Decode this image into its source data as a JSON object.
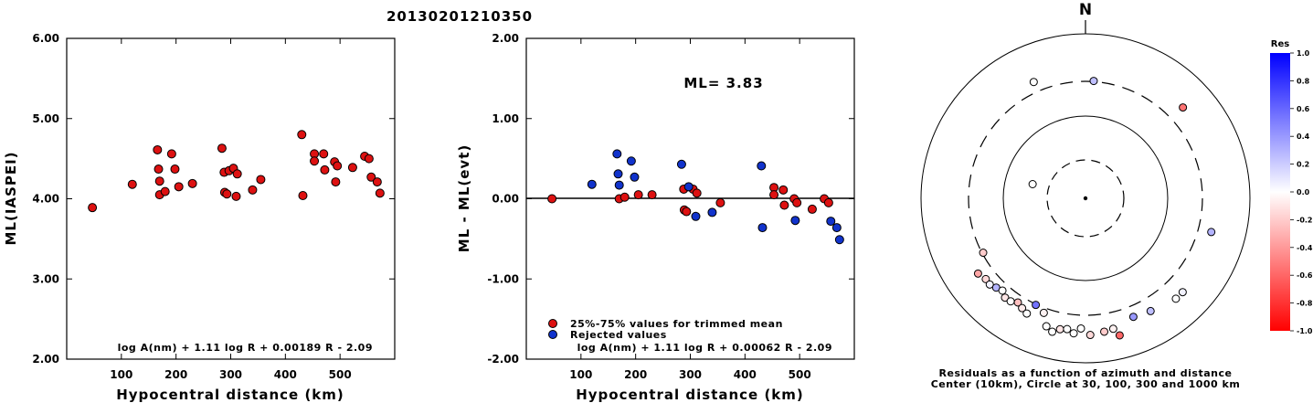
{
  "figure_title": "20130201210350",
  "chart_data": [
    {
      "type": "scatter",
      "xlabel": "Hypocentral distance (km)",
      "ylabel": "ML(IASPEI)",
      "xlim": [
        0,
        600
      ],
      "ylim": [
        2.0,
        6.0
      ],
      "x_ticks": [
        "100",
        "200",
        "300",
        "400",
        "500"
      ],
      "y_ticks": [
        "2.00",
        "3.00",
        "4.00",
        "5.00",
        "6.00"
      ],
      "annotation": "log A(nm) + 1.11 log R + 0.00189 R - 2.09",
      "series": [
        {
          "color": "#dd1111",
          "points": [
            [
              47,
              3.89
            ],
            [
              120,
              4.18
            ],
            [
              166,
              4.61
            ],
            [
              168,
              4.37
            ],
            [
              170,
              4.22
            ],
            [
              170,
              4.05
            ],
            [
              180,
              4.09
            ],
            [
              192,
              4.56
            ],
            [
              198,
              4.37
            ],
            [
              205,
              4.15
            ],
            [
              230,
              4.19
            ],
            [
              284,
              4.63
            ],
            [
              288,
              4.33
            ],
            [
              289,
              4.08
            ],
            [
              293,
              4.06
            ],
            [
              297,
              4.35
            ],
            [
              305,
              4.38
            ],
            [
              310,
              4.03
            ],
            [
              312,
              4.31
            ],
            [
              340,
              4.11
            ],
            [
              355,
              4.24
            ],
            [
              430,
              4.8
            ],
            [
              432,
              4.04
            ],
            [
              453,
              4.56
            ],
            [
              453,
              4.47
            ],
            [
              470,
              4.56
            ],
            [
              472,
              4.36
            ],
            [
              490,
              4.46
            ],
            [
              492,
              4.21
            ],
            [
              495,
              4.41
            ],
            [
              523,
              4.39
            ],
            [
              545,
              4.53
            ],
            [
              553,
              4.5
            ],
            [
              557,
              4.27
            ],
            [
              568,
              4.21
            ],
            [
              573,
              4.07
            ]
          ]
        }
      ]
    },
    {
      "type": "scatter",
      "xlabel": "Hypocentral distance (km)",
      "ylabel": "ML - ML(evt)",
      "xlim": [
        0,
        600
      ],
      "ylim": [
        -2.0,
        2.0
      ],
      "x_ticks": [
        "100",
        "200",
        "300",
        "400",
        "500"
      ],
      "y_ticks": [
        "-2.00",
        "-1.00",
        "0.00",
        "1.00",
        "2.00"
      ],
      "ml_label": "ML= 3.83",
      "annotation": "log A(nm) + 1.11 log R + 0.00062 R - 2.09",
      "legend": {
        "placement": "bottom-left",
        "entries": [
          "25%-75% values for trimmed mean",
          "Rejected values"
        ]
      },
      "series": [
        {
          "name": "25%-75% values for trimmed mean",
          "color": "#dd1111",
          "points": [
            [
              47,
              0.0
            ],
            [
              170,
              0.0
            ],
            [
              180,
              0.02
            ],
            [
              205,
              0.05
            ],
            [
              230,
              0.05
            ],
            [
              288,
              0.12
            ],
            [
              289,
              -0.14
            ],
            [
              293,
              -0.16
            ],
            [
              305,
              0.12
            ],
            [
              312,
              0.07
            ],
            [
              355,
              -0.05
            ],
            [
              453,
              0.14
            ],
            [
              453,
              0.05
            ],
            [
              470,
              0.11
            ],
            [
              472,
              -0.08
            ],
            [
              490,
              0.0
            ],
            [
              495,
              -0.05
            ],
            [
              523,
              -0.13
            ],
            [
              545,
              0.0
            ],
            [
              553,
              -0.05
            ]
          ]
        },
        {
          "name": "Rejected values",
          "color": "#1133cc",
          "points": [
            [
              120,
              0.18
            ],
            [
              166,
              0.56
            ],
            [
              168,
              0.31
            ],
            [
              170,
              0.17
            ],
            [
              192,
              0.47
            ],
            [
              198,
              0.27
            ],
            [
              284,
              0.43
            ],
            [
              297,
              0.15
            ],
            [
              310,
              -0.22
            ],
            [
              340,
              -0.17
            ],
            [
              430,
              0.41
            ],
            [
              432,
              -0.36
            ],
            [
              492,
              -0.27
            ],
            [
              557,
              -0.28
            ],
            [
              568,
              -0.36
            ],
            [
              573,
              -0.51
            ]
          ]
        }
      ]
    },
    {
      "type": "scatter",
      "subtype": "polar residual map",
      "north_label": "N",
      "caption_line1": "Residuals as a function of azimuth and distance",
      "caption_line2": "Center (10km), Circle at 30, 100, 300 and 1000 km",
      "colorbar": {
        "title": "Res",
        "range": [
          -1.0,
          1.0
        ],
        "tick_labels": [
          "1.0",
          "0.8",
          "0.6",
          "0.4",
          "0.2",
          "0.0",
          "-0.2",
          "-0.4",
          "-0.6",
          "-0.8",
          "-1.0"
        ]
      },
      "stations": [
        {
          "azimuth": 47,
          "distance_km": 453,
          "residual": -0.55
        },
        {
          "azimuth": 336,
          "distance_km": 390,
          "residual": 0.0
        },
        {
          "azimuth": 4,
          "distance_km": 305,
          "residual": 0.25
        },
        {
          "azimuth": 285,
          "distance_km": 47,
          "residual": 0.0
        },
        {
          "azimuth": 242,
          "distance_km": 290,
          "residual": -0.2
        },
        {
          "azimuth": 235,
          "distance_km": 430,
          "residual": -0.35
        },
        {
          "azimuth": 231,
          "distance_km": 400,
          "residual": -0.15
        },
        {
          "azimuth": 228,
          "distance_km": 405,
          "residual": 0.05
        },
        {
          "azimuth": 225,
          "distance_km": 380,
          "residual": 0.3
        },
        {
          "azimuth": 222,
          "distance_km": 360,
          "residual": 0.0
        },
        {
          "azimuth": 219,
          "distance_km": 395,
          "residual": -0.1
        },
        {
          "azimuth": 216,
          "distance_km": 390,
          "residual": 0.0
        },
        {
          "azimuth": 213,
          "distance_km": 360,
          "residual": -0.25
        },
        {
          "azimuth": 210,
          "distance_km": 385,
          "residual": -0.08
        },
        {
          "azimuth": 205,
          "distance_km": 305,
          "residual": 0.55
        },
        {
          "azimuth": 207,
          "distance_km": 410,
          "residual": 0.0
        },
        {
          "azimuth": 200,
          "distance_km": 340,
          "residual": -0.05
        },
        {
          "azimuth": 197,
          "distance_km": 460,
          "residual": 0.0
        },
        {
          "azimuth": 194,
          "distance_km": 505,
          "residual": 0.0
        },
        {
          "azimuth": 191,
          "distance_km": 455,
          "residual": -0.1
        },
        {
          "azimuth": 188,
          "distance_km": 440,
          "residual": 0.0
        },
        {
          "azimuth": 185,
          "distance_km": 480,
          "residual": 0.0
        },
        {
          "azimuth": 182,
          "distance_km": 420,
          "residual": 0.0
        },
        {
          "azimuth": 178,
          "distance_km": 495,
          "residual": -0.15
        },
        {
          "azimuth": 172,
          "distance_km": 470,
          "residual": -0.2
        },
        {
          "azimuth": 168,
          "distance_km": 455,
          "residual": -0.05
        },
        {
          "azimuth": 166,
          "distance_km": 555,
          "residual": -0.6
        },
        {
          "azimuth": 158,
          "distance_km": 395,
          "residual": 0.4
        },
        {
          "azimuth": 150,
          "distance_km": 420,
          "residual": 0.25
        },
        {
          "azimuth": 138,
          "distance_km": 475,
          "residual": 0.0
        },
        {
          "azimuth": 134,
          "distance_km": 475,
          "residual": 0.05
        },
        {
          "azimuth": 105,
          "distance_km": 420,
          "residual": 0.3
        }
      ]
    }
  ]
}
